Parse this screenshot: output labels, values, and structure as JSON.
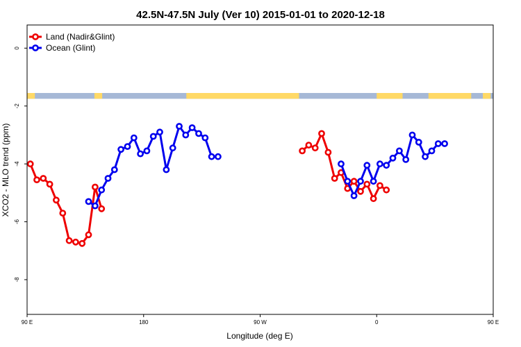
{
  "chart_data": {
    "type": "line",
    "title": "42.5N-47.5N July (Ver 10)   2015-01-01 to 2020-12-18",
    "xlabel": "Longitude (deg E)",
    "ylabel": "XCO2 - MLO trend (ppm)",
    "xlim": [
      90,
      450
    ],
    "ylim": [
      -9.2,
      0.8
    ],
    "x_ticks": [
      {
        "value": 90,
        "label": "90 E"
      },
      {
        "value": 180,
        "label": "180"
      },
      {
        "value": 270,
        "label": "90 W"
      },
      {
        "value": 360,
        "label": "0"
      },
      {
        "value": 450,
        "label": "90 E"
      },
      {
        "value": 540,
        "label": "180"
      }
    ],
    "y_ticks": [
      {
        "value": 0,
        "label": "0"
      },
      {
        "value": -2,
        "label": "-2"
      },
      {
        "value": -4,
        "label": "-4"
      },
      {
        "value": -6,
        "label": "-6"
      },
      {
        "value": -8,
        "label": "-8"
      }
    ],
    "legend_position": "top-left",
    "grid": false,
    "land_ocean_band": {
      "y_range": [
        -1.75,
        -1.55
      ],
      "land_color": "#FFD966",
      "ocean_color": "#A6B8D6",
      "land_segments": [
        [
          90,
          96
        ],
        [
          142,
          148
        ],
        [
          213,
          300
        ],
        [
          360,
          380
        ],
        [
          400,
          433
        ],
        [
          442,
          448
        ]
      ]
    },
    "series": [
      {
        "name": "Land (Nadir&Glint)",
        "color": "#EE0000",
        "segments": [
          [
            [
              92.5,
              -4.0
            ],
            [
              97.5,
              -4.55
            ],
            [
              102.5,
              -4.5
            ],
            [
              107.5,
              -4.7
            ],
            [
              112.5,
              -5.25
            ],
            [
              117.5,
              -5.7
            ],
            [
              122.5,
              -6.65
            ],
            [
              127.5,
              -6.7
            ],
            [
              132.5,
              -6.75
            ],
            [
              137.5,
              -6.45
            ],
            [
              142.5,
              -4.8
            ],
            [
              147.5,
              -5.55
            ]
          ],
          [
            [
              302.5,
              -3.55
            ],
            [
              307.5,
              -3.35
            ],
            [
              312.5,
              -3.45
            ],
            [
              317.5,
              -2.95
            ],
            [
              322.5,
              -3.6
            ],
            [
              327.5,
              -4.5
            ],
            [
              332.5,
              -4.3
            ],
            [
              337.5,
              -4.85
            ],
            [
              342.5,
              -4.6
            ],
            [
              347.5,
              -4.95
            ],
            [
              352.5,
              -4.7
            ],
            [
              357.5,
              -5.2
            ],
            [
              362.5,
              -4.75
            ],
            [
              367.5,
              -4.9
            ]
          ]
        ]
      },
      {
        "name": "Ocean (Glint)",
        "color": "#0000EE",
        "segments": [
          [
            [
              137.5,
              -5.3
            ],
            [
              142.5,
              -5.45
            ],
            [
              147.5,
              -4.9
            ],
            [
              152.5,
              -4.5
            ],
            [
              157.5,
              -4.2
            ],
            [
              162.5,
              -3.5
            ],
            [
              167.5,
              -3.4
            ],
            [
              172.5,
              -3.1
            ],
            [
              177.5,
              -3.65
            ],
            [
              182.5,
              -3.55
            ],
            [
              187.5,
              -3.05
            ],
            [
              192.5,
              -2.9
            ],
            [
              197.5,
              -4.2
            ],
            [
              202.5,
              -3.45
            ],
            [
              207.5,
              -2.7
            ],
            [
              212.5,
              -3.0
            ],
            [
              217.5,
              -2.75
            ],
            [
              222.5,
              -2.95
            ],
            [
              227.5,
              -3.1
            ],
            [
              232.5,
              -3.75
            ],
            [
              237.5,
              -3.75
            ]
          ],
          [
            [
              332.5,
              -4.0
            ],
            [
              337.5,
              -4.6
            ],
            [
              342.5,
              -5.1
            ],
            [
              347.5,
              -4.6
            ],
            [
              352.5,
              -4.05
            ],
            [
              357.5,
              -4.6
            ],
            [
              362.5,
              -4.0
            ],
            [
              367.5,
              -4.05
            ],
            [
              372.5,
              -3.8
            ],
            [
              377.5,
              -3.55
            ],
            [
              382.5,
              -3.85
            ],
            [
              387.5,
              -3.0
            ],
            [
              392.5,
              -3.25
            ],
            [
              397.5,
              -3.75
            ],
            [
              402.5,
              -3.55
            ],
            [
              407.5,
              -3.3
            ],
            [
              412.5,
              -3.3
            ]
          ]
        ]
      }
    ]
  }
}
